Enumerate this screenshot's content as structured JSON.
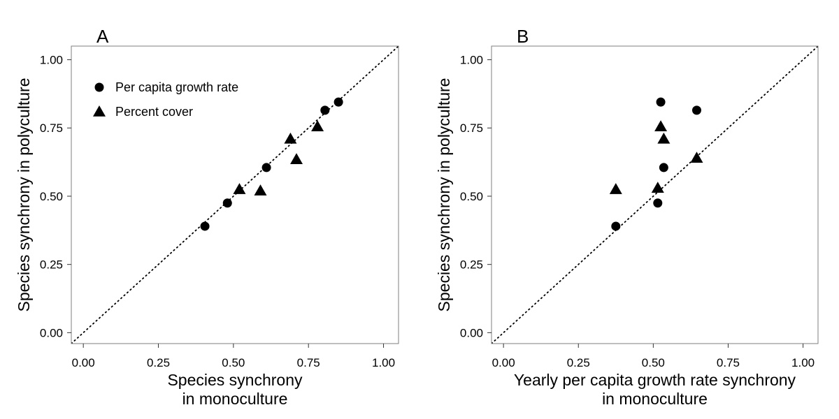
{
  "chart_data": [
    {
      "type": "scatter",
      "panel_label": "A",
      "xlabel": [
        "Species synchrony",
        "in monoculture"
      ],
      "ylabel": "Species synchrony in polyculture",
      "xlim": [
        -0.04,
        1.05
      ],
      "ylim": [
        -0.04,
        1.05
      ],
      "xticks": [
        "0.00",
        "0.25",
        "0.50",
        "0.75",
        "1.00"
      ],
      "yticks": [
        "0.00",
        "0.25",
        "0.50",
        "0.75",
        "1.00"
      ],
      "grid": false,
      "reference_line": "1:1 dotted",
      "legend": {
        "placement": "top-left",
        "entries": [
          {
            "label": "Per capita growth rate",
            "marker": "circle"
          },
          {
            "label": "Percent cover",
            "marker": "triangle"
          }
        ]
      },
      "series": [
        {
          "name": "Per capita growth rate",
          "marker": "circle",
          "points": [
            [
              0.405,
              0.39
            ],
            [
              0.48,
              0.475
            ],
            [
              0.61,
              0.605
            ],
            [
              0.805,
              0.815
            ],
            [
              0.85,
              0.845
            ]
          ]
        },
        {
          "name": "Percent cover",
          "marker": "triangle",
          "points": [
            [
              0.52,
              0.525
            ],
            [
              0.59,
              0.52
            ],
            [
              0.69,
              0.71
            ],
            [
              0.71,
              0.635
            ],
            [
              0.78,
              0.755
            ]
          ]
        }
      ]
    },
    {
      "type": "scatter",
      "panel_label": "B",
      "xlabel": [
        "Yearly per capita growth rate synchrony",
        "in monoculture"
      ],
      "ylabel": "Species synchrony in polyculture",
      "xlim": [
        -0.04,
        1.05
      ],
      "ylim": [
        -0.04,
        1.05
      ],
      "xticks": [
        "0.00",
        "0.25",
        "0.50",
        "0.75",
        "1.00"
      ],
      "yticks": [
        "0.00",
        "0.25",
        "0.50",
        "0.75",
        "1.00"
      ],
      "grid": false,
      "reference_line": "1:1 dotted",
      "series": [
        {
          "name": "Per capita growth rate",
          "marker": "circle",
          "points": [
            [
              0.375,
              0.39
            ],
            [
              0.515,
              0.475
            ],
            [
              0.535,
              0.605
            ],
            [
              0.525,
              0.845
            ],
            [
              0.645,
              0.815
            ]
          ]
        },
        {
          "name": "Percent cover",
          "marker": "triangle",
          "points": [
            [
              0.375,
              0.525
            ],
            [
              0.515,
              0.53
            ],
            [
              0.525,
              0.755
            ],
            [
              0.535,
              0.71
            ],
            [
              0.645,
              0.64
            ]
          ]
        }
      ]
    }
  ]
}
